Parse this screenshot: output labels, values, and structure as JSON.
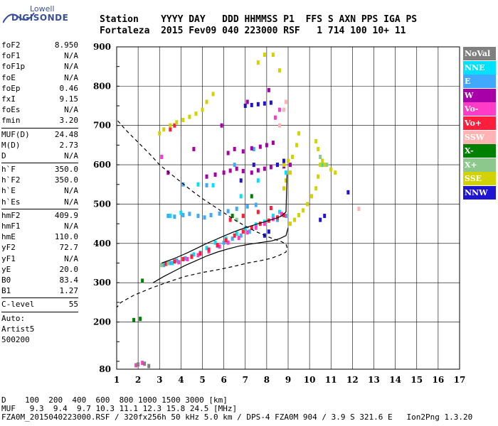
{
  "logo": {
    "line1": "Lowell",
    "line2": "DIGISONDE"
  },
  "header": {
    "row1": "Station    YYYY DAY   DDD HHMMSS P1  FFS S AXN PPS IGA PS",
    "row2": "Fortaleza  2015 Fev09 040 223000 RSF   1 714 100 10+ 11"
  },
  "params": [
    {
      "type": "row",
      "label": "foF2",
      "value": "8.950"
    },
    {
      "type": "row",
      "label": "foF1",
      "value": "N/A"
    },
    {
      "type": "row",
      "label": "foF1p",
      "value": "N/A"
    },
    {
      "type": "row",
      "label": "foE",
      "value": "N/A"
    },
    {
      "type": "row",
      "label": "foEp",
      "value": "0.46"
    },
    {
      "type": "row",
      "label": "fxI",
      "value": "9.15"
    },
    {
      "type": "row",
      "label": "foEs",
      "value": "N/A"
    },
    {
      "type": "row",
      "label": "fmin",
      "value": "3.20"
    },
    {
      "type": "sep"
    },
    {
      "type": "row",
      "label": "MUF(D)",
      "value": "24.48"
    },
    {
      "type": "row",
      "label": "M(D)",
      "value": "2.73"
    },
    {
      "type": "row",
      "label": "D",
      "value": "N/A"
    },
    {
      "type": "sep"
    },
    {
      "type": "row",
      "label": "h`F",
      "value": "350.0"
    },
    {
      "type": "row",
      "label": "h`F2",
      "value": "350.0"
    },
    {
      "type": "row",
      "label": "h`E",
      "value": "N/A"
    },
    {
      "type": "row",
      "label": "h`Es",
      "value": "N/A"
    },
    {
      "type": "sep"
    },
    {
      "type": "row",
      "label": "hmF2",
      "value": "409.9"
    },
    {
      "type": "row",
      "label": "hmF1",
      "value": "N/A"
    },
    {
      "type": "row",
      "label": "hmE",
      "value": "110.0"
    },
    {
      "type": "row",
      "label": "yF2",
      "value": "72.7"
    },
    {
      "type": "row",
      "label": "yF1",
      "value": "N/A"
    },
    {
      "type": "row",
      "label": "yE",
      "value": "20.0"
    },
    {
      "type": "row",
      "label": "B0",
      "value": "83.4"
    },
    {
      "type": "row",
      "label": "B1",
      "value": "1.27"
    },
    {
      "type": "sep"
    },
    {
      "type": "row",
      "label": "C-level",
      "value": "55"
    },
    {
      "type": "sep"
    },
    {
      "type": "text",
      "text": "Auto:"
    },
    {
      "type": "text",
      "text": "Artist5"
    },
    {
      "type": "text",
      "text": "500200"
    }
  ],
  "legend": [
    {
      "label": "NoVal",
      "color": "#808080"
    },
    {
      "label": "NNE",
      "color": "#00e0ff"
    },
    {
      "label": "E",
      "color": "#40a8ff"
    },
    {
      "label": "W",
      "color": "#a800a8"
    },
    {
      "label": "Vo-",
      "color": "#ff3cc8"
    },
    {
      "label": "Vo+",
      "color": "#ff1e3c"
    },
    {
      "label": "SSW",
      "color": "#ffb4b4"
    },
    {
      "label": "X-",
      "color": "#008000"
    },
    {
      "label": "X+",
      "color": "#8cc88c"
    },
    {
      "label": "SSE",
      "color": "#d2d200"
    },
    {
      "label": "NNW",
      "color": "#1e14d2"
    }
  ],
  "footer": {
    "line1": "D    100  200  400  600  800 1000 1500 3000 [km]",
    "line2": "MUF   9.3  9.4  9.7 10.3 11.1 12.3 15.8 24.5 [MHz]",
    "line3": "FZA0M_2015040223000.RSF / 320fx256h 50 kHz 5.0 km / DPS-4 FZA0M 904 / 3.9 S 321.6 E   Ion2Png 1.3.20"
  },
  "chart_data": {
    "type": "scatter",
    "title": "",
    "xlabel": "",
    "ylabel": "",
    "xlim": [
      1,
      17
    ],
    "ylim": [
      80,
      900
    ],
    "x_ticks": [
      1,
      2,
      3,
      4,
      5,
      6,
      7,
      8,
      9,
      10,
      11,
      12,
      13,
      14,
      15,
      16,
      17
    ],
    "y_ticks": [
      80,
      200,
      300,
      400,
      500,
      600,
      700,
      800,
      900
    ],
    "grid": true,
    "series": [
      {
        "name": "NNE",
        "color": "#00e0ff",
        "x": [
          3.6,
          4.1,
          4.6,
          5.2,
          5.6,
          6.1,
          6.6,
          7.0,
          7.5,
          7.9,
          8.3,
          8.6,
          3.5,
          4.0,
          6.8,
          7.6,
          8.9,
          10.6,
          4.8,
          5.5
        ],
        "y": [
          350,
          360,
          372,
          388,
          402,
          412,
          425,
          438,
          448,
          455,
          470,
          480,
          470,
          478,
          520,
          560,
          580,
          600,
          550,
          548
        ]
      },
      {
        "name": "E",
        "color": "#40a8ff",
        "x": [
          3.2,
          3.5,
          3.8,
          4.2,
          4.5,
          4.9,
          5.3,
          5.7,
          6.0,
          6.4,
          6.8,
          7.2,
          3.4,
          3.7,
          4.1,
          4.4,
          4.8,
          5.1,
          5.4,
          5.8,
          6.2,
          6.6,
          7.1,
          7.5,
          4.1,
          5.2,
          8.5,
          8.9,
          6.5,
          7.4
        ],
        "y": [
          345,
          350,
          356,
          362,
          368,
          376,
          384,
          394,
          402,
          412,
          420,
          430,
          470,
          468,
          472,
          475,
          470,
          466,
          472,
          476,
          482,
          488,
          494,
          498,
          550,
          548,
          460,
          470,
          600,
          640
        ]
      },
      {
        "name": "W",
        "color": "#a800a8",
        "x": [
          5.2,
          5.6,
          6.0,
          6.3,
          6.6,
          6.9,
          7.3,
          7.6,
          7.9,
          8.2,
          8.5,
          8.8,
          9.1,
          6.2,
          6.5,
          6.9,
          7.3,
          7.7,
          8.0,
          8.3,
          3.4,
          4.6,
          5.9,
          7.1,
          8.1
        ],
        "y": [
          570,
          575,
          580,
          585,
          590,
          584,
          580,
          586,
          590,
          594,
          600,
          596,
          600,
          630,
          640,
          634,
          642,
          646,
          650,
          656,
          580,
          640,
          700,
          760,
          790
        ]
      },
      {
        "name": "Vo-",
        "color": "#ff3cc8",
        "x": [
          3.9,
          4.3,
          4.8,
          5.3,
          5.8,
          6.2,
          6.7,
          7.1,
          7.5,
          7.9,
          8.3,
          8.7,
          1.9,
          2.2,
          3.1,
          8.4,
          8.6
        ],
        "y": [
          352,
          360,
          370,
          380,
          392,
          402,
          414,
          428,
          440,
          450,
          462,
          475,
          90,
          96,
          620,
          720,
          740
        ]
      },
      {
        "name": "Vo+",
        "color": "#ff1e3c",
        "x": [
          3.3,
          3.7,
          4.1,
          4.5,
          4.9,
          5.3,
          5.7,
          6.1,
          6.5,
          6.9,
          7.3,
          7.7,
          8.1,
          8.5,
          8.8,
          6.3,
          6.9,
          7.6,
          8.2,
          3.5,
          3.7
        ],
        "y": [
          348,
          354,
          360,
          366,
          374,
          384,
          396,
          408,
          420,
          430,
          440,
          450,
          458,
          466,
          472,
          460,
          470,
          480,
          490,
          690,
          700
        ]
      },
      {
        "name": "SSW",
        "color": "#ffb4b4",
        "x": [
          8.6,
          8.8,
          8.9,
          12.3
        ],
        "y": [
          700,
          740,
          760,
          488
        ]
      },
      {
        "name": "X-",
        "color": "#008000",
        "x": [
          1.8,
          2.1,
          2.2,
          6.4,
          7.3
        ],
        "y": [
          205,
          208,
          305,
          470,
          520
        ]
      },
      {
        "name": "X+",
        "color": "#8cc88c",
        "x": [
          3.1,
          3.4,
          10.5,
          10.8,
          6.6
        ],
        "y": [
          345,
          350,
          620,
          600,
          460
        ]
      },
      {
        "name": "SSE",
        "color": "#d2d200",
        "x": [
          3.0,
          3.2,
          3.5,
          3.8,
          4.1,
          4.4,
          4.7,
          5.0,
          5.2,
          5.5,
          9.1,
          9.3,
          9.5,
          9.7,
          9.9,
          10.1,
          10.3,
          10.4,
          10.5,
          10.4,
          10.3,
          8.8,
          8.9,
          9.1,
          7.6,
          7.9,
          8.3,
          8.6,
          8.8,
          9.0,
          9.2,
          9.4,
          9.5,
          10.6,
          10.7,
          11.0,
          11.2
        ],
        "y": [
          680,
          690,
          700,
          708,
          714,
          722,
          730,
          740,
          760,
          780,
          450,
          460,
          472,
          484,
          500,
          520,
          540,
          570,
          600,
          640,
          660,
          540,
          560,
          580,
          860,
          880,
          880,
          840,
          600,
          610,
          620,
          650,
          680,
          610,
          600,
          588,
          580
        ]
      },
      {
        "name": "NNW",
        "color": "#1e14d2",
        "x": [
          7.0,
          7.3,
          7.6,
          7.9,
          8.2,
          8.5,
          8.8,
          10.5,
          10.7,
          7.9,
          8.1,
          11.8,
          6.8,
          7.4
        ],
        "y": [
          750,
          752,
          754,
          756,
          758,
          600,
          610,
          460,
          470,
          420,
          430,
          530,
          560,
          600
        ]
      },
      {
        "name": "NoVal",
        "color": "#808080",
        "x": [
          2.0,
          2.3,
          2.5
        ],
        "y": [
          92,
          94,
          88
        ]
      }
    ],
    "lines": [
      {
        "style": "dashed",
        "x": [
          1.05,
          1.4,
          1.8,
          2.2,
          2.6,
          3.0,
          3.5,
          4.0,
          4.5,
          5.0,
          5.5,
          6.0,
          6.5,
          7.0,
          7.5,
          8.0,
          8.4,
          8.7,
          8.9,
          8.95,
          8.9,
          8.6,
          8.2,
          7.7,
          7.1,
          6.5,
          5.8,
          5.0,
          4.2,
          3.4,
          2.6,
          1.8,
          1.2,
          1.02
        ],
        "y": [
          712,
          690,
          668,
          646,
          624,
          600,
          578,
          556,
          534,
          514,
          496,
          478,
          460,
          444,
          430,
          418,
          410,
          404,
          398,
          390,
          378,
          370,
          362,
          356,
          350,
          342,
          334,
          326,
          316,
          302,
          286,
          268,
          250,
          238
        ]
      },
      {
        "style": "solid",
        "x": [
          3.1,
          3.4,
          3.7,
          4.0,
          4.3,
          4.6,
          4.9,
          5.2,
          5.5,
          5.8,
          6.1,
          6.4,
          6.7,
          7.0,
          7.3,
          7.6,
          7.9,
          8.2,
          8.5,
          8.7,
          8.9,
          8.95
        ],
        "y": [
          350,
          356,
          362,
          369,
          376,
          384,
          392,
          400,
          407,
          414,
          421,
          428,
          434,
          440,
          445,
          450,
          455,
          460,
          465,
          470,
          480,
          575
        ]
      },
      {
        "style": "solid",
        "x": [
          2.7,
          3.2,
          3.7,
          4.2,
          4.7,
          5.2,
          5.7,
          6.2,
          6.7,
          7.2,
          7.7,
          8.2,
          8.6,
          8.9,
          9.0
        ],
        "y": [
          300,
          316,
          330,
          344,
          356,
          368,
          378,
          386,
          393,
          398,
          402,
          406,
          412,
          420,
          440
        ]
      }
    ]
  }
}
